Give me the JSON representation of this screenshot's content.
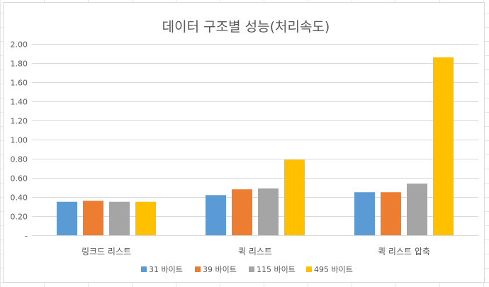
{
  "chart_data": {
    "type": "bar",
    "title": "데이터 구조별 성능(처리속도)",
    "xlabel": "",
    "ylabel": "",
    "categories": [
      "링크드 리스트",
      "퀵 리스트",
      "퀵 리스트 압축"
    ],
    "series": [
      {
        "name": "31 바이트",
        "color": "#5b9bd5",
        "values": [
          0.35,
          0.42,
          0.45
        ]
      },
      {
        "name": "39 바이트",
        "color": "#ed7d31",
        "values": [
          0.36,
          0.48,
          0.45
        ]
      },
      {
        "name": "115 바이트",
        "color": "#a5a5a5",
        "values": [
          0.35,
          0.49,
          0.54
        ]
      },
      {
        "name": "495 바이트",
        "color": "#ffc000",
        "values": [
          0.35,
          0.79,
          1.86
        ]
      }
    ],
    "ylim": [
      0,
      2.0
    ],
    "yticks": [
      "-",
      "0.20",
      "0.40",
      "0.60",
      "0.80",
      "1.00",
      "1.20",
      "1.40",
      "1.60",
      "1.80",
      "2.00"
    ],
    "grid": true,
    "legend_position": "bottom"
  }
}
